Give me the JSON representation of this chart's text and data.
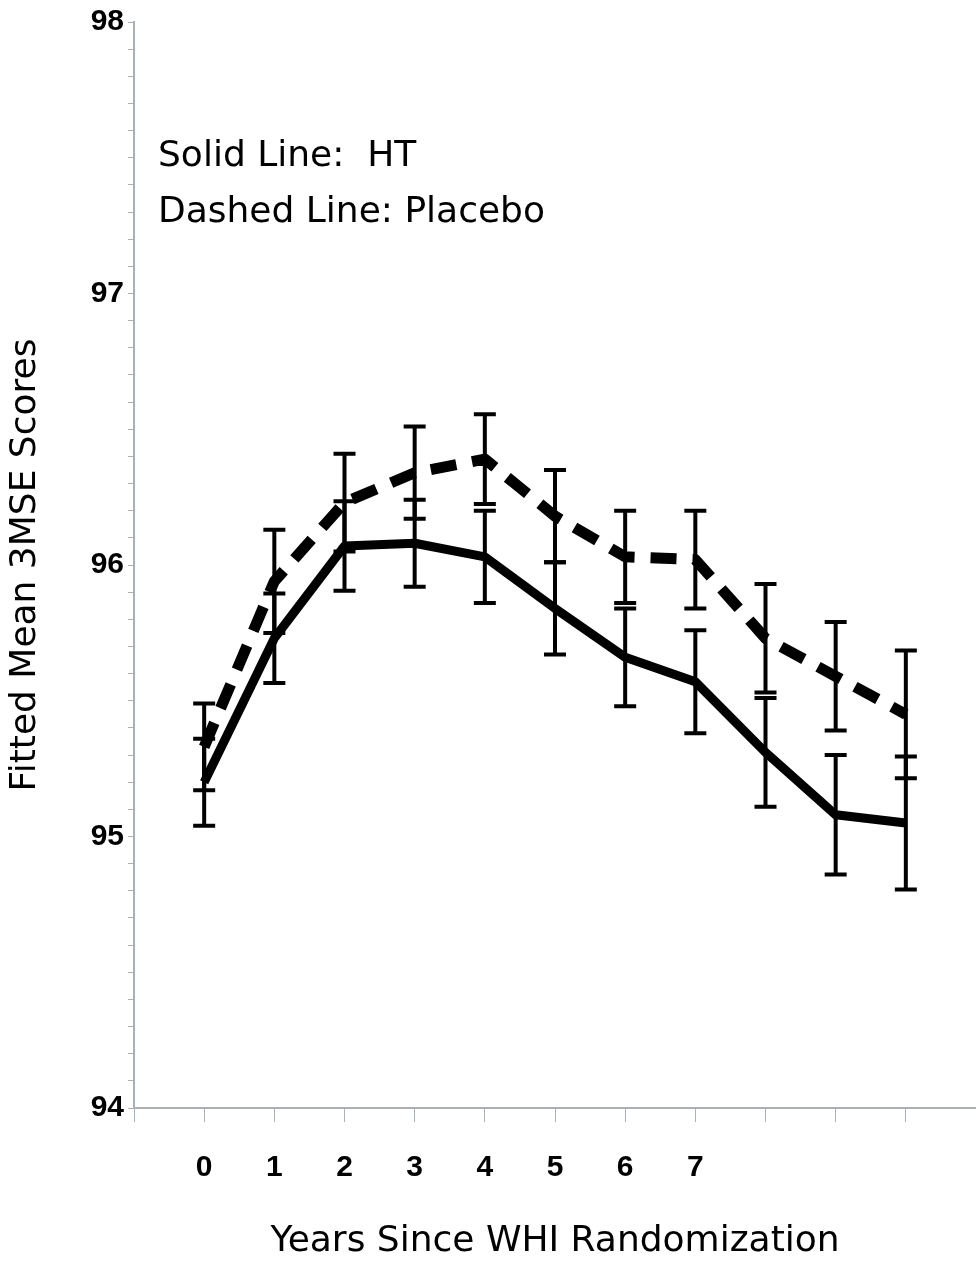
{
  "chart_data": {
    "type": "line",
    "xlabel": "Years Since WHI Randomization",
    "ylabel": "Fitted Mean 3MSE Scores",
    "annotations": [
      "Solid Line:  HT",
      "Dashed Line: Placebo"
    ],
    "x": [
      0,
      1,
      2,
      3,
      4,
      5,
      6,
      7,
      8,
      9,
      10
    ],
    "series": [
      {
        "color": "#000000",
        "line_style": "solid",
        "values": [
          95.2,
          95.73,
          96.07,
          96.08,
          96.03,
          95.84,
          95.66,
          95.57,
          95.31,
          95.08,
          95.05
        ],
        "errors": [
          0.16,
          0.165,
          0.165,
          0.16,
          0.17,
          0.17,
          0.18,
          0.19,
          0.2,
          0.22,
          0.245
        ]
      },
      {
        "color": "#000000",
        "line_style": "dashed",
        "values": [
          95.33,
          95.94,
          96.23,
          96.34,
          96.39,
          96.18,
          96.03,
          96.02,
          95.73,
          95.59,
          95.45
        ],
        "errors": [
          0.16,
          0.19,
          0.18,
          0.17,
          0.165,
          0.17,
          0.17,
          0.18,
          0.2,
          0.2,
          0.235
        ]
      }
    ],
    "marker": "none",
    "grid": false,
    "legend": false,
    "xlim": [
      -1,
      11
    ],
    "xticks": [
      {
        "value": -1,
        "label": null
      },
      0,
      1,
      2,
      3,
      4,
      5,
      6,
      7,
      {
        "value": 8,
        "label": null
      },
      {
        "value": 9,
        "label": null
      },
      {
        "value": 10,
        "label": null
      }
    ],
    "ylim": [
      94,
      98
    ],
    "yticks": [
      94,
      {
        "value": 94.1,
        "label": null
      },
      {
        "value": 94.2,
        "label": null
      },
      {
        "value": 94.3,
        "label": null
      },
      {
        "value": 94.4,
        "label": null
      },
      {
        "value": 94.5,
        "label": null
      },
      {
        "value": 94.6,
        "label": null
      },
      {
        "value": 94.7,
        "label": null
      },
      {
        "value": 94.8,
        "label": null
      },
      {
        "value": 94.9,
        "label": null
      },
      95,
      {
        "value": 95.1,
        "label": null
      },
      {
        "value": 95.2,
        "label": null
      },
      {
        "value": 95.3,
        "label": null
      },
      {
        "value": 95.4,
        "label": null
      },
      {
        "value": 95.5,
        "label": null
      },
      {
        "value": 95.6,
        "label": null
      },
      {
        "value": 95.7,
        "label": null
      },
      {
        "value": 95.8,
        "label": null
      },
      {
        "value": 95.9,
        "label": null
      },
      96,
      {
        "value": 96.1,
        "label": null
      },
      {
        "value": 96.2,
        "label": null
      },
      {
        "value": 96.3,
        "label": null
      },
      {
        "value": 96.4,
        "label": null
      },
      {
        "value": 96.5,
        "label": null
      },
      {
        "value": 96.6,
        "label": null
      },
      {
        "value": 96.7,
        "label": null
      },
      {
        "value": 96.8,
        "label": null
      },
      {
        "value": 96.9,
        "label": null
      },
      97,
      {
        "value": 97.1,
        "label": null
      },
      {
        "value": 97.2,
        "label": null
      },
      {
        "value": 97.3,
        "label": null
      },
      {
        "value": 97.4,
        "label": null
      },
      {
        "value": 97.5,
        "label": null
      },
      {
        "value": 97.6,
        "label": null
      },
      {
        "value": 97.7,
        "label": null
      },
      {
        "value": 97.8,
        "label": null
      },
      {
        "value": 97.9,
        "label": null
      },
      98
    ]
  }
}
